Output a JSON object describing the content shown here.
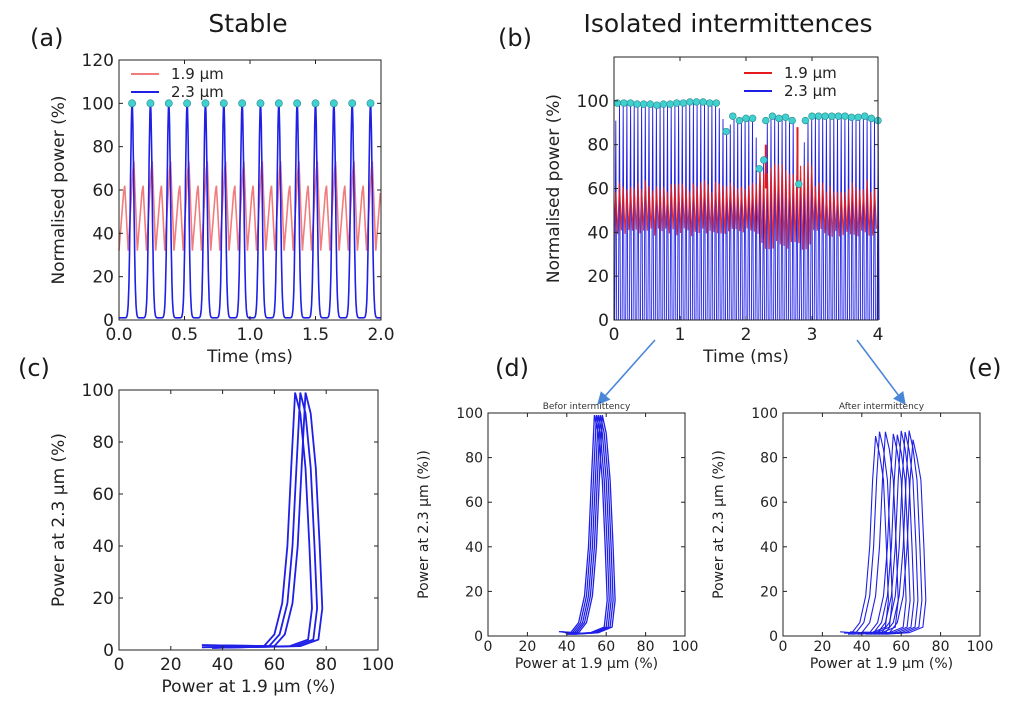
{
  "figure": {
    "panel_labels": [
      "(a)",
      "(b)",
      "(c)",
      "(d)",
      "(e)"
    ],
    "column_titles": [
      "Stable",
      "Isolated intermittences"
    ]
  },
  "colors": {
    "red": "#e41a1c",
    "blue": "#1f1fe6",
    "marker": "#40d0d0"
  },
  "chart_data": [
    {
      "id": "a",
      "type": "line",
      "title": "Stable",
      "xlabel": "Time (ms)",
      "ylabel": "Normalised power (%)",
      "xlim": [
        0,
        2.0
      ],
      "ylim": [
        0,
        120
      ],
      "xticks": [
        "0.0",
        "0.5",
        "1.0",
        "1.5",
        "2.0"
      ],
      "yticks": [
        "0",
        "20",
        "40",
        "60",
        "80",
        "100",
        "120"
      ],
      "legend": {
        "position": "top-left",
        "entries": [
          "1.9 µm",
          "2.3 µm"
        ]
      },
      "series": [
        {
          "name": "1.9 µm",
          "color": "#f27c7c",
          "pulse_period_ms": 0.14,
          "baseline": 32,
          "peak_cycle": [
            64,
            76
          ]
        },
        {
          "name": "2.3 µm",
          "color": "#1f1fe6",
          "pulse_period_ms": 0.14,
          "baseline": 1,
          "peak": 100,
          "peak_times_ms": [
            0.1,
            0.24,
            0.38,
            0.52,
            0.66,
            0.8,
            0.94,
            1.08,
            1.22,
            1.36,
            1.5,
            1.64,
            1.78,
            1.92
          ]
        }
      ],
      "markers": {
        "color": "#40d0d0",
        "y": 100
      }
    },
    {
      "id": "b",
      "type": "line",
      "title": "Isolated intermittences",
      "xlabel": "Time (ms)",
      "ylabel": "Normalised power (%)",
      "xlim": [
        0,
        4
      ],
      "ylim": [
        0,
        120
      ],
      "xticks": [
        "0",
        "1",
        "2",
        "3",
        "4"
      ],
      "yticks": [
        "0",
        "20",
        "40",
        "60",
        "80",
        "100"
      ],
      "legend": {
        "position": "top-right",
        "entries": [
          "1.9 µm",
          "2.3 µm"
        ]
      },
      "series": [
        {
          "name": "1.9 µm",
          "color": "#e41a1c",
          "band": [
            38,
            64
          ]
        },
        {
          "name": "2.3 µm",
          "color": "#1f1fe6",
          "pulse_period_ms": 0.056,
          "baseline": 0
        }
      ],
      "markers": {
        "color": "#40d0d0",
        "points": [
          [
            0.05,
            99
          ],
          [
            0.15,
            99
          ],
          [
            0.25,
            99
          ],
          [
            0.35,
            98.5
          ],
          [
            0.45,
            98.5
          ],
          [
            0.55,
            98.5
          ],
          [
            0.65,
            98
          ],
          [
            0.75,
            98.5
          ],
          [
            0.85,
            98.5
          ],
          [
            0.95,
            99
          ],
          [
            1.05,
            99
          ],
          [
            1.15,
            99.5
          ],
          [
            1.25,
            99.5
          ],
          [
            1.35,
            99.5
          ],
          [
            1.45,
            99
          ],
          [
            1.55,
            99
          ],
          [
            1.7,
            86
          ],
          [
            1.8,
            93
          ],
          [
            1.9,
            91
          ],
          [
            2.0,
            92
          ],
          [
            2.1,
            92
          ],
          [
            2.2,
            69
          ],
          [
            2.27,
            73
          ],
          [
            2.3,
            91
          ],
          [
            2.4,
            93
          ],
          [
            2.5,
            92
          ],
          [
            2.6,
            92.5
          ],
          [
            2.7,
            91
          ],
          [
            2.8,
            62
          ],
          [
            2.9,
            91
          ],
          [
            3.0,
            93
          ],
          [
            3.1,
            93
          ],
          [
            3.2,
            93
          ],
          [
            3.3,
            93
          ],
          [
            3.4,
            93
          ],
          [
            3.5,
            93
          ],
          [
            3.6,
            92.5
          ],
          [
            3.7,
            92.5
          ],
          [
            3.8,
            93
          ],
          [
            3.9,
            92
          ],
          [
            4.0,
            91
          ]
        ]
      }
    },
    {
      "id": "c",
      "type": "line",
      "title": "",
      "xlabel": "Power at 1.9 µm (%)",
      "ylabel": "Power at 2.3 µm (%)",
      "xlim": [
        0,
        100
      ],
      "ylim": [
        0,
        100
      ],
      "xticks": [
        "0",
        "20",
        "40",
        "60",
        "80",
        "100"
      ],
      "yticks": [
        "0",
        "20",
        "40",
        "60",
        "80",
        "100"
      ],
      "series": [
        {
          "color": "#1f1fe6",
          "loop_peak_x": [
            68,
            70,
            72
          ],
          "loop_peak_y": 99
        }
      ]
    },
    {
      "id": "d",
      "type": "line",
      "title": "Befor intermittency",
      "xlabel": "Power at 1.9 µm (%)",
      "ylabel": "Power at 2.3 µm (%))",
      "xlim": [
        0,
        100
      ],
      "ylim": [
        0,
        100
      ],
      "xticks": [
        "0",
        "20",
        "40",
        "60",
        "80",
        "100"
      ],
      "yticks": [
        "0",
        "20",
        "40",
        "60",
        "80",
        "100"
      ],
      "series": [
        {
          "color": "#1f1fe6",
          "loop_peak_x": [
            54,
            55,
            56,
            57,
            58
          ],
          "loop_peak_y": 99
        }
      ]
    },
    {
      "id": "e",
      "type": "line",
      "title": "After intermittency",
      "xlabel": "Power at 1.9 µm (%)",
      "ylabel": "Power at 2.3 µm (%))",
      "xlim": [
        0,
        100
      ],
      "ylim": [
        0,
        100
      ],
      "xticks": [
        "0",
        "20",
        "40",
        "60",
        "80",
        "100"
      ],
      "yticks": [
        "0",
        "20",
        "40",
        "60",
        "80",
        "100"
      ],
      "series": [
        {
          "color": "#1f1fe6",
          "loop_peak_x": [
            47,
            49,
            52,
            56,
            58,
            60,
            62,
            64,
            66
          ],
          "loop_peak_y": 94
        }
      ]
    }
  ]
}
